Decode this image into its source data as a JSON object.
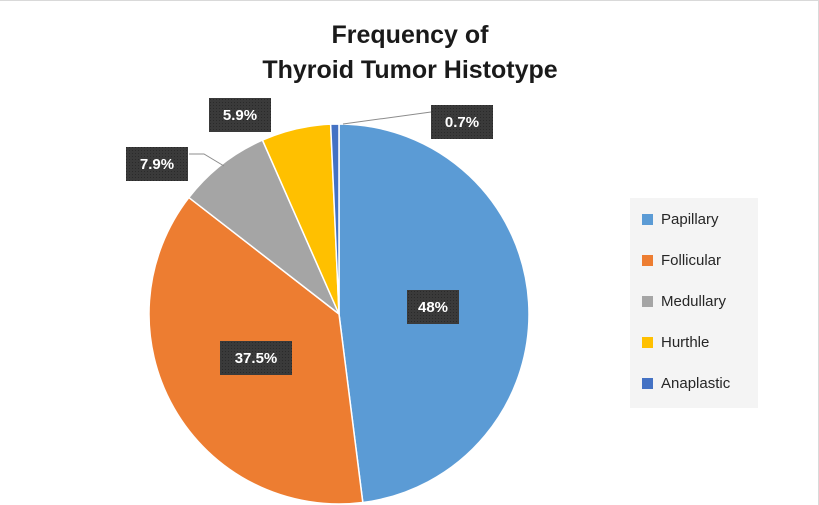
{
  "chart_data": {
    "type": "pie",
    "title_lines": [
      "Frequency of",
      "Thyroid Tumor Histotype"
    ],
    "slices": [
      {
        "name": "Papillary",
        "value": 48,
        "label": "48%",
        "color": "#5b9bd5"
      },
      {
        "name": "Follicular",
        "value": 37.5,
        "label": "37.5%",
        "color": "#ed7d31"
      },
      {
        "name": "Medullary",
        "value": 7.9,
        "label": "7.9%",
        "color": "#a5a5a5"
      },
      {
        "name": "Hurthle",
        "value": 5.9,
        "label": "5.9%",
        "color": "#ffc000"
      },
      {
        "name": "Anaplastic",
        "value": 0.7,
        "label": "0.7%",
        "color": "#4472c4"
      }
    ],
    "legend_position": "right",
    "data_label_style": "dark-box"
  }
}
